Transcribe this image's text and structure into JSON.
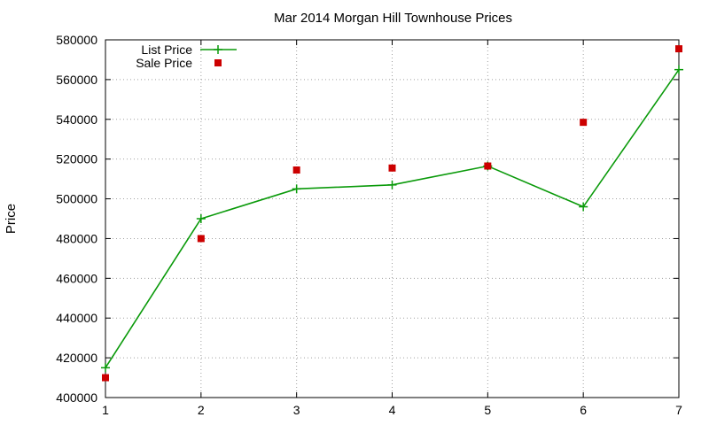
{
  "chart_data": {
    "type": "line",
    "title": "Mar 2014 Morgan Hill Townhouse Prices",
    "xlabel": "",
    "ylabel": "Price",
    "x": [
      1,
      2,
      3,
      4,
      5,
      6,
      7
    ],
    "xlim": [
      1,
      7
    ],
    "ylim": [
      400000,
      580000
    ],
    "xticks": [
      "1",
      "2",
      "3",
      "4",
      "5",
      "6",
      "7"
    ],
    "yticks": [
      "400000",
      "420000",
      "440000",
      "460000",
      "480000",
      "500000",
      "520000",
      "540000",
      "560000",
      "580000"
    ],
    "grid": true,
    "legend_position": "top-left",
    "series": [
      {
        "name": "List Price",
        "style": "line-with-plus-markers",
        "color": "#0a9a0a",
        "values": [
          415000,
          490000,
          505000,
          507000,
          516500,
          496000,
          565000
        ]
      },
      {
        "name": "Sale Price",
        "style": "square-points",
        "color": "#cc0000",
        "values": [
          410000,
          480000,
          514500,
          515500,
          516500,
          538500,
          575500
        ]
      }
    ]
  }
}
